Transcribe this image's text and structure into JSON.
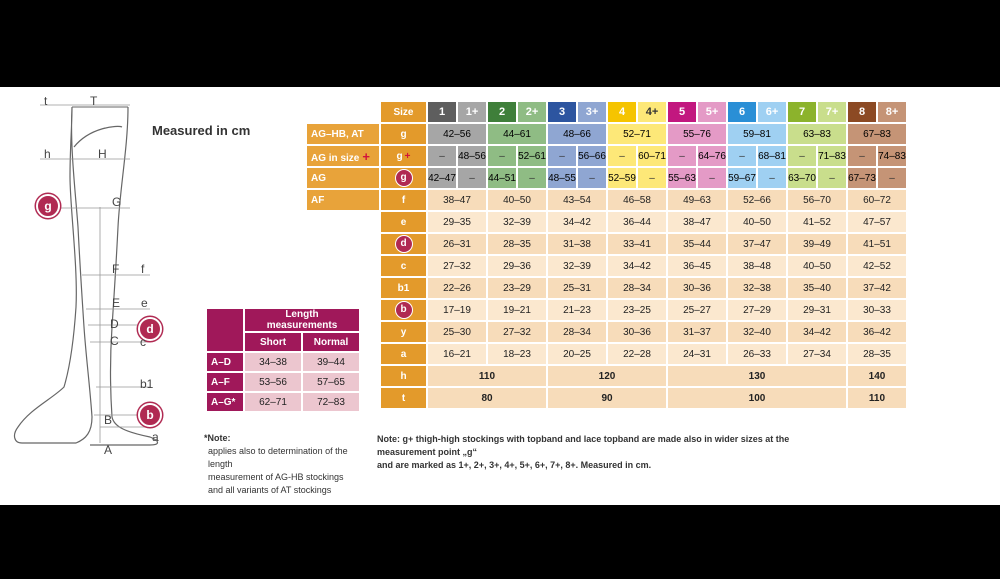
{
  "figure": {
    "measured_label": "Measured in cm",
    "points": {
      "t": "t",
      "T": "T",
      "h": "h",
      "H": "H",
      "g": "g",
      "G": "G",
      "F": "F",
      "f": "f",
      "E": "E",
      "e": "e",
      "D": "D",
      "d": "d",
      "C": "C",
      "c": "c",
      "b1": "b1",
      "B": "B",
      "b": "b",
      "a": "a",
      "A": "A"
    }
  },
  "length_table": {
    "title": "Length measurements",
    "col_short": "Short",
    "col_normal": "Normal",
    "rows": [
      {
        "label": "A–D",
        "short": "34–38",
        "normal": "39–44"
      },
      {
        "label": "A–F",
        "short": "53–56",
        "normal": "57–65"
      },
      {
        "label": "A–G*",
        "short": "62–71",
        "normal": "72–83"
      }
    ],
    "note_head": "*Note:",
    "note_lines": [
      "applies also to determination of the length",
      "measurement of AG-HB stockings",
      "and all variants of AT stockings"
    ]
  },
  "size_table": {
    "size_label": "Size",
    "sizes": [
      {
        "n": "1",
        "p": "1+",
        "color": "#5e5e5e",
        "light": "#a6a6a6"
      },
      {
        "n": "2",
        "p": "2+",
        "color": "#3f7f3a",
        "light": "#8fbc84"
      },
      {
        "n": "3",
        "p": "3+",
        "color": "#2d55a0",
        "light": "#8fa6d2"
      },
      {
        "n": "4",
        "p": "4+",
        "color": "#f5c400",
        "light": "#fde878"
      },
      {
        "n": "5",
        "p": "5+",
        "color": "#c2177f",
        "light": "#e49ac6"
      },
      {
        "n": "6",
        "p": "6+",
        "color": "#2a8fd6",
        "light": "#9fd0f2"
      },
      {
        "n": "7",
        "p": "7+",
        "color": "#8cb32c",
        "light": "#c9de8c"
      },
      {
        "n": "8",
        "p": "8+",
        "color": "#8c4a24",
        "light": "#c59476"
      }
    ],
    "row_ag_hb": {
      "label": "AG–HB, AT",
      "code": "g",
      "values": [
        "42–56",
        "44–61",
        "48–66",
        "52–71",
        "55–76",
        "59–81",
        "63–83",
        "67–83"
      ]
    },
    "row_ag_size": {
      "label": "AG in size",
      "plus": "+",
      "code": "g",
      "plus2": "+",
      "dash": "–",
      "values": [
        "48–56",
        "52–61",
        "56–66",
        "60–71",
        "64–76",
        "68–81",
        "71–83",
        "74–83"
      ]
    },
    "row_ag": {
      "label": "AG",
      "code": "g",
      "dash": "–",
      "values": [
        "42–47",
        "44–51",
        "48–55",
        "52–59",
        "55–63",
        "59–67",
        "63–70",
        "67–73"
      ]
    },
    "rows": [
      {
        "label": "AF",
        "code": "f",
        "circle": false,
        "values": [
          "38–47",
          "40–50",
          "43–54",
          "46–58",
          "49–63",
          "52–66",
          "56–70",
          "60–72"
        ]
      },
      {
        "label": "",
        "code": "e",
        "circle": false,
        "values": [
          "29–35",
          "32–39",
          "34–42",
          "36–44",
          "38–47",
          "40–50",
          "41–52",
          "47–57"
        ]
      },
      {
        "label": "",
        "code": "d",
        "circle": true,
        "values": [
          "26–31",
          "28–35",
          "31–38",
          "33–41",
          "35–44",
          "37–47",
          "39–49",
          "41–51"
        ]
      },
      {
        "label": "",
        "code": "c",
        "circle": false,
        "values": [
          "27–32",
          "29–36",
          "32–39",
          "34–42",
          "36–45",
          "38–48",
          "40–50",
          "42–52"
        ]
      },
      {
        "label": "",
        "code": "b1",
        "circle": false,
        "values": [
          "22–26",
          "23–29",
          "25–31",
          "28–34",
          "30–36",
          "32–38",
          "35–40",
          "37–42"
        ]
      },
      {
        "label": "",
        "code": "b",
        "circle": true,
        "values": [
          "17–19",
          "19–21",
          "21–23",
          "23–25",
          "25–27",
          "27–29",
          "29–31",
          "30–33"
        ]
      },
      {
        "label": "",
        "code": "y",
        "circle": false,
        "values": [
          "25–30",
          "27–32",
          "28–34",
          "30–36",
          "31–37",
          "32–40",
          "34–42",
          "36–42"
        ]
      },
      {
        "label": "",
        "code": "a",
        "circle": false,
        "values": [
          "16–21",
          "18–23",
          "20–25",
          "22–28",
          "24–31",
          "26–33",
          "27–34",
          "28–35"
        ]
      }
    ],
    "row_h": {
      "code": "h",
      "groups": [
        "110",
        "120",
        "130",
        "140"
      ]
    },
    "row_t": {
      "code": "t",
      "groups": [
        "80",
        "90",
        "100",
        "110"
      ]
    },
    "note_line1": "Note: g+ thigh-high stockings with topband and lace topband are made also in wider sizes at the measurement point „g“",
    "note_line2": "and are marked as 1+, 2+, 3+, 4+, 5+, 6+, 7+, 8+. Measured in cm."
  }
}
